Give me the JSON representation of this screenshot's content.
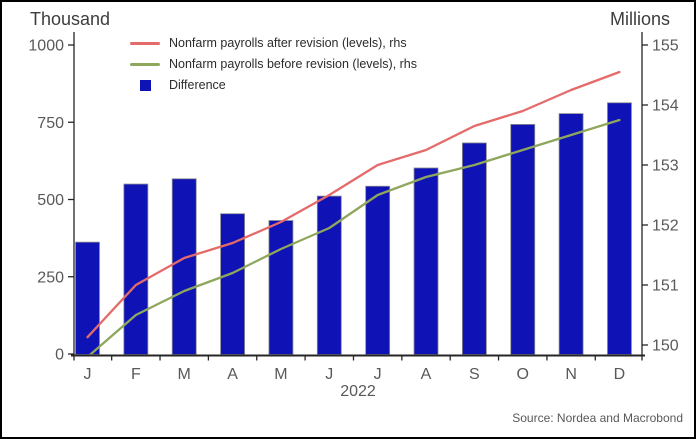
{
  "chart_data": {
    "type": "bar",
    "title_left_axis": "Thousand",
    "title_right_axis": "Millions",
    "x_year_label": "2022",
    "categories": [
      "J",
      "F",
      "M",
      "A",
      "M",
      "J",
      "J",
      "A",
      "S",
      "O",
      "N",
      "D"
    ],
    "series": [
      {
        "name": "Nonfarm payrolls after revision (levels), rhs",
        "type": "line",
        "axis": "right",
        "color": "#e56a6a",
        "values": [
          150.13,
          151.0,
          151.45,
          151.7,
          152.05,
          152.5,
          153.0,
          153.25,
          153.65,
          153.9,
          154.25,
          154.55
        ]
      },
      {
        "name": "Nonfarm payrolls before revision (levels), rhs",
        "type": "line",
        "axis": "right",
        "color": "#8fa75c",
        "values": [
          149.8,
          150.5,
          150.9,
          151.2,
          151.6,
          151.95,
          152.5,
          152.8,
          153.0,
          153.25,
          153.5,
          153.75
        ]
      },
      {
        "name": "Difference",
        "type": "bar",
        "axis": "left",
        "color": "#0f13b6",
        "values": [
          362,
          550,
          567,
          454,
          432,
          511,
          543,
          602,
          683,
          743,
          778,
          813
        ]
      }
    ],
    "left_axis": {
      "ticks": [
        0,
        250,
        500,
        750,
        1000
      ],
      "range": [
        0,
        1000
      ]
    },
    "right_axis": {
      "ticks": [
        150,
        151,
        152,
        153,
        154,
        155
      ],
      "range": [
        150,
        155
      ]
    },
    "grid": "off",
    "legend_position": "top-left-inside",
    "source": "Source: Nordea and Macrobond",
    "text_color": "#595959",
    "axis_color": "#262626"
  }
}
